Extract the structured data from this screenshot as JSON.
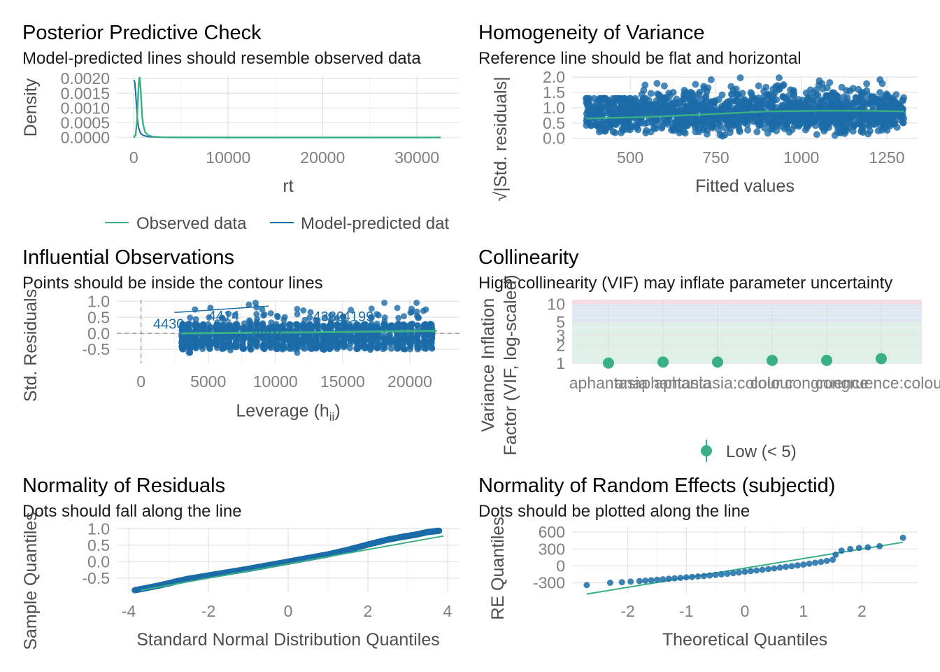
{
  "colors": {
    "observed": "#3aaf85",
    "predicted": "#1b6ca8",
    "points": "#1b6ca8",
    "reference": "#3aaf85",
    "vif_low_band": "#dff0e8",
    "vif_moderate_band": "#dde7f3",
    "vif_high_band": "#f6dde3"
  },
  "chart_data": [
    {
      "id": "ppc",
      "type": "line",
      "title": "Posterior Predictive Check",
      "subtitle": "Model-predicted lines should resemble observed data",
      "xlabel": "rt",
      "ylabel": "Density",
      "xlim": [
        -1800,
        34500
      ],
      "ylim": [
        -6e-05,
        0.0021
      ],
      "xticks": [
        0,
        10000,
        20000,
        30000
      ],
      "xtick_labels": [
        "0",
        "10000",
        "20000",
        "30000"
      ],
      "yticks": [
        0,
        0.0005,
        0.001,
        0.0015,
        0.002
      ],
      "ytick_labels": [
        "0.0000",
        "0.0005",
        "0.0010",
        "0.0015",
        "0.0020"
      ],
      "legend": {
        "position": "bottom",
        "entries": [
          "Observed data",
          "Model-predicted dat"
        ]
      },
      "series": [
        {
          "name": "Observed data",
          "x": [
            0,
            200,
            350,
            450,
            550,
            620,
            700,
            800,
            900,
            1000,
            1200,
            1500,
            2000,
            3000,
            5000,
            10000,
            20000,
            32500
          ],
          "y": [
            0,
            0.0001,
            0.0006,
            0.0014,
            0.00195,
            0.00205,
            0.0018,
            0.0012,
            0.0007,
            0.00042,
            0.00018,
            8e-05,
            3e-05,
            1e-05,
            5e-06,
            2e-06,
            1e-06,
            1e-06
          ]
        },
        {
          "name": "Model-predicted dat",
          "x": [
            0,
            100,
            200,
            300,
            400,
            500,
            700,
            1000,
            1500,
            2000,
            3000,
            5000,
            10000,
            20000,
            32500
          ],
          "y": [
            0.00195,
            0.0019,
            0.0015,
            0.001,
            0.0006,
            0.00035,
            0.00015,
            7e-05,
            3e-05,
            2e-05,
            1e-05,
            5e-06,
            2e-06,
            1e-06,
            1e-06
          ]
        }
      ]
    },
    {
      "id": "homog",
      "type": "scatter",
      "title": "Homogeneity of Variance",
      "subtitle": "Reference line should be flat and horizontal",
      "xlabel": "Fitted values",
      "ylabel": "√|Std. residuals|",
      "xlim": [
        330,
        1340
      ],
      "ylim": [
        -0.03,
        2.05
      ],
      "xticks": [
        500,
        750,
        1000,
        1250
      ],
      "xtick_labels": [
        "500",
        "750",
        "1000",
        "1250"
      ],
      "yticks": [
        0,
        0.5,
        1,
        1.5,
        2
      ],
      "ytick_labels": [
        "0.0",
        "0.5",
        "1.0",
        "1.5",
        "2.0"
      ],
      "points_range": {
        "x": [
          370,
          1300
        ],
        "y": [
          0,
          1.98
        ]
      },
      "reference_line": {
        "x": [
          370,
          550,
          750,
          900,
          1050,
          1200,
          1300
        ],
        "y": [
          0.65,
          0.7,
          0.8,
          0.88,
          0.9,
          0.9,
          0.88
        ]
      }
    },
    {
      "id": "influ",
      "type": "scatter",
      "title": "Influential Observations",
      "subtitle": "Points should be inside the contour lines",
      "xlabel": "Leverage (h",
      "xlabel_subscript": "ii",
      "xlabel_suffix": ")",
      "ylabel": "Std. Residuals",
      "xlim": [
        -1800,
        23700
      ],
      "ylim": [
        -0.93,
        1.05
      ],
      "xticks": [
        0,
        5000,
        10000,
        15000,
        20000
      ],
      "xtick_labels": [
        "0",
        "5000",
        "10000",
        "15000",
        "20000"
      ],
      "yticks": [
        -0.5,
        0,
        0.5,
        1
      ],
      "ytick_labels": [
        "-0.5",
        "0.0",
        "0.5",
        "1.0"
      ],
      "points_range": {
        "x": [
          3000,
          22000
        ],
        "y": [
          -0.8,
          0.95
        ]
      },
      "point_labels": [
        {
          "text": "4430",
          "x": 900,
          "y": 0.15
        },
        {
          "text": "4414",
          "x": 5000,
          "y": 0.4
        },
        {
          "text": "4467",
          "x": 8300,
          "y": -0.1
        },
        {
          "text": "4380",
          "x": 12800,
          "y": 0.38
        },
        {
          "text": "4199",
          "x": 15000,
          "y": 0.38
        }
      ],
      "reference_line": {
        "x": [
          3000,
          8000,
          12000,
          16000,
          20000,
          22000
        ],
        "y": [
          0.0,
          0.02,
          0.03,
          0.05,
          0.07,
          0.08
        ]
      },
      "contour_line": {
        "x": [
          2500,
          9500
        ],
        "y": [
          0.65,
          0.85
        ]
      }
    },
    {
      "id": "vif",
      "type": "scatter",
      "title": "Collinearity",
      "subtitle": "High collinearity (VIF) may inflate parameter uncertainty",
      "xlabel": "",
      "ylabel": "Variance Inflation\nFactor (VIF, log-scaled)",
      "log_scale_y": true,
      "ylim": [
        1,
        12
      ],
      "yticks": [
        1,
        2,
        3,
        5,
        10
      ],
      "ytick_labels": [
        "1",
        "2",
        "3",
        "5",
        "10"
      ],
      "categories": [
        "aphantasia",
        "anaphantasia",
        "aphantasia:colour",
        "colour",
        "congruence",
        "congruence:colour"
      ],
      "values": [
        1.01,
        1.05,
        1.05,
        1.12,
        1.12,
        1.2
      ],
      "bands": [
        {
          "name": "Low",
          "from": 1,
          "to": 5
        },
        {
          "name": "Moderate",
          "from": 5,
          "to": 10
        },
        {
          "name": "High",
          "from": 10,
          "to": 12
        }
      ],
      "legend": {
        "position": "bottom",
        "entries": [
          "Low (< 5)"
        ]
      }
    },
    {
      "id": "qq",
      "type": "scatter",
      "title": "Normality of Residuals",
      "subtitle": "Dots should fall along the line",
      "xlabel": "Standard Normal Distribution Quantiles",
      "ylabel": "Sample Quantiles",
      "xlim": [
        -4.3,
        4.3
      ],
      "ylim": [
        -0.95,
        1.05
      ],
      "xticks": [
        -4,
        -2,
        0,
        2,
        4
      ],
      "xtick_labels": [
        "-4",
        "-2",
        "0",
        "2",
        "4"
      ],
      "yticks": [
        -0.5,
        0,
        0.5,
        1
      ],
      "ytick_labels": [
        "-0.5",
        "0.0",
        "0.5",
        "1.0"
      ],
      "points": {
        "x": [
          -3.85,
          -3.3,
          -3.0,
          -2.8,
          -2.5,
          -2.0,
          -1.5,
          -1.0,
          -0.5,
          0,
          0.5,
          1.0,
          1.5,
          2.0,
          2.5,
          2.9,
          3.2,
          3.5,
          3.8
        ],
        "y": [
          -0.87,
          -0.74,
          -0.66,
          -0.6,
          -0.52,
          -0.42,
          -0.32,
          -0.22,
          -0.11,
          0.0,
          0.11,
          0.22,
          0.36,
          0.52,
          0.67,
          0.76,
          0.82,
          0.9,
          0.94
        ]
      },
      "reference_line": {
        "x": [
          -3.7,
          3.9
        ],
        "y": [
          -0.87,
          0.78
        ]
      }
    },
    {
      "id": "re",
      "type": "scatter",
      "title": "Normality of Random Effects (subjectid)",
      "subtitle": "Dots should be plotted along the line",
      "xlabel": "Theoretical Quantiles",
      "ylabel": "RE Quantiles",
      "xlim": [
        -2.95,
        2.95
      ],
      "ylim": [
        -480,
        690
      ],
      "xticks": [
        -2,
        -1,
        0,
        1,
        2
      ],
      "xtick_labels": [
        "-2",
        "-1",
        "0",
        "1",
        "2"
      ],
      "yticks": [
        -300,
        0,
        300,
        600
      ],
      "ytick_labels": [
        "-300",
        "0",
        "300",
        "600"
      ],
      "points": {
        "x": [
          -2.7,
          -2.3,
          -2.1,
          -1.95,
          -1.8,
          -1.7,
          -1.6,
          -1.5,
          -1.4,
          -1.3,
          -1.2,
          -1.1,
          -1.0,
          -0.9,
          -0.8,
          -0.7,
          -0.6,
          -0.5,
          -0.4,
          -0.3,
          -0.2,
          -0.1,
          0.0,
          0.1,
          0.2,
          0.3,
          0.4,
          0.5,
          0.6,
          0.7,
          0.8,
          0.9,
          1.0,
          1.1,
          1.2,
          1.3,
          1.4,
          1.5,
          1.55,
          1.65,
          1.8,
          1.95,
          2.1,
          2.3,
          2.7
        ],
        "y": [
          -340,
          -300,
          -290,
          -280,
          -270,
          -262,
          -255,
          -245,
          -238,
          -228,
          -220,
          -212,
          -204,
          -196,
          -188,
          -180,
          -170,
          -160,
          -150,
          -140,
          -128,
          -116,
          -104,
          -92,
          -80,
          -68,
          -56,
          -44,
          -30,
          -16,
          -4,
          10,
          24,
          40,
          56,
          72,
          90,
          110,
          200,
          270,
          300,
          320,
          330,
          350,
          500
        ]
      },
      "reference_line": {
        "x": [
          -2.7,
          2.7
        ],
        "y": [
          -500,
          420
        ]
      }
    }
  ]
}
